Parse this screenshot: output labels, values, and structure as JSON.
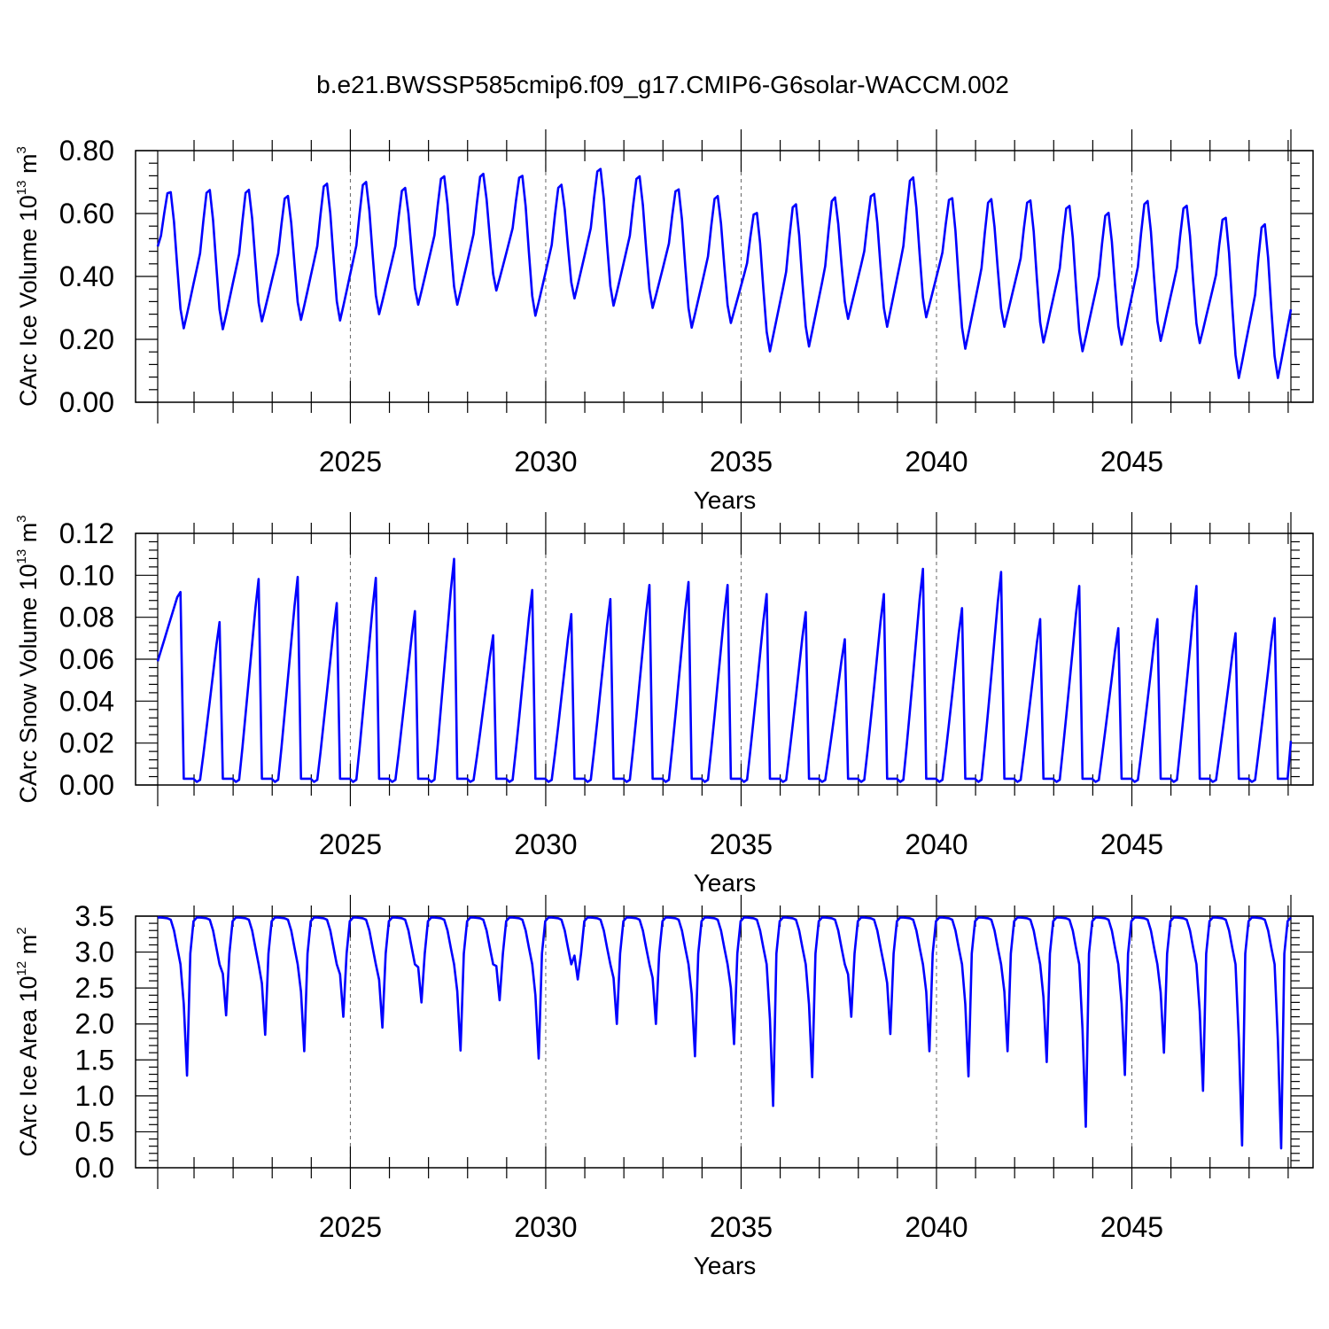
{
  "title": "b.e21.BWSSP585cmip6.f09_g17.CMIP6-G6solar-WACCM.002",
  "chart_data": [
    {
      "type": "line",
      "ylabel": {
        "main": "CArc Ice Volume 10",
        "exp": "13",
        "unit": " m",
        "unit_exp": "3"
      },
      "xlabel": "Years",
      "xlim": [
        2020.07,
        2049.07
      ],
      "ylim": [
        0.0,
        0.8
      ],
      "yticks": [
        0.0,
        0.2,
        0.4,
        0.6,
        0.8
      ],
      "ytick_labels": [
        "0.00",
        "0.20",
        "0.40",
        "0.60",
        "0.80"
      ],
      "xticks": [
        2025,
        2030,
        2035,
        2040,
        2045
      ],
      "xtick_labels": [
        "2025",
        "2030",
        "2035",
        "2040",
        "2045"
      ],
      "grid_x": [
        2025,
        2030,
        2035,
        2040,
        2045
      ],
      "series": [
        {
          "name": "CArc Ice Volume",
          "color": "#0000ff",
          "minima": [
            0.235,
            0.232,
            0.257,
            0.262,
            0.26,
            0.28,
            0.31,
            0.31,
            0.355,
            0.275,
            0.33,
            0.307,
            0.3,
            0.237,
            0.252,
            0.162,
            0.177,
            0.265,
            0.24,
            0.27,
            0.17,
            0.24,
            0.19,
            0.162,
            0.183,
            0.195,
            0.188,
            0.077,
            0.077
          ],
          "maxima": [
            0.678,
            0.685,
            0.685,
            0.665,
            0.705,
            0.71,
            0.69,
            0.728,
            0.735,
            0.73,
            0.7,
            0.752,
            0.728,
            0.687,
            0.665,
            0.612,
            0.64,
            0.66,
            0.672,
            0.725,
            0.66,
            0.655,
            0.652,
            0.635,
            0.612,
            0.65,
            0.635,
            0.598,
            0.577
          ],
          "start": 0.495,
          "end": 0.295
        }
      ]
    },
    {
      "type": "line",
      "ylabel": {
        "main": "CArc Snow Volume 10",
        "exp": "13",
        "unit": " m",
        "unit_exp": "3"
      },
      "xlabel": "Years",
      "xlim": [
        2020.07,
        2049.07
      ],
      "ylim": [
        0.0,
        0.12
      ],
      "yticks": [
        0.0,
        0.02,
        0.04,
        0.06,
        0.08,
        0.1,
        0.12
      ],
      "ytick_labels": [
        "0.00",
        "0.02",
        "0.04",
        "0.06",
        "0.08",
        "0.10",
        "0.12"
      ],
      "xticks": [
        2025,
        2030,
        2035,
        2040,
        2045
      ],
      "xtick_labels": [
        "2025",
        "2030",
        "2035",
        "2040",
        "2045"
      ],
      "grid_x": [
        2025,
        2030,
        2035,
        2040,
        2045
      ],
      "series": [
        {
          "name": "CArc Snow Volume",
          "color": "#0000ff",
          "start": 0.059,
          "peaks": [
            0.0945,
            0.0795,
            0.101,
            0.102,
            0.089,
            0.1015,
            0.085,
            0.111,
            0.073,
            0.0955,
            0.0835,
            0.091,
            0.098,
            0.0995,
            0.098,
            0.0935,
            0.0845,
            0.071,
            0.0935,
            0.106,
            0.0865,
            0.1045,
            0.081,
            0.0975,
            0.0765,
            0.081,
            0.0975,
            0.074,
            0.0815
          ],
          "end": 0.021
        }
      ]
    },
    {
      "type": "line",
      "ylabel": {
        "main": "CArc Ice Area 10",
        "exp": "12",
        "unit": " m",
        "unit_exp": "2"
      },
      "xlabel": "Years",
      "xlim": [
        2020.07,
        2049.07
      ],
      "ylim": [
        0.0,
        3.5
      ],
      "yticks": [
        0.0,
        0.5,
        1.0,
        1.5,
        2.0,
        2.5,
        3.0,
        3.5
      ],
      "ytick_labels": [
        "0.0",
        "0.5",
        "1.0",
        "1.5",
        "2.0",
        "2.5",
        "3.0",
        "3.5"
      ],
      "xticks": [
        2025,
        2030,
        2035,
        2040,
        2045
      ],
      "xtick_labels": [
        "2025",
        "2030",
        "2035",
        "2040",
        "2045"
      ],
      "grid_x": [
        2025,
        2030,
        2035,
        2040,
        2045
      ],
      "series": [
        {
          "name": "CArc Ice Area",
          "color": "#0000ff",
          "max": 3.48,
          "minima": [
            1.28,
            2.12,
            1.85,
            1.62,
            2.1,
            1.95,
            2.3,
            1.63,
            2.33,
            1.52,
            2.62,
            2.0,
            2.0,
            1.55,
            1.72,
            0.86,
            1.26,
            2.1,
            1.86,
            1.62,
            1.27,
            1.62,
            1.47,
            0.57,
            1.29,
            1.6,
            1.07,
            0.31,
            0.27
          ]
        }
      ]
    }
  ]
}
